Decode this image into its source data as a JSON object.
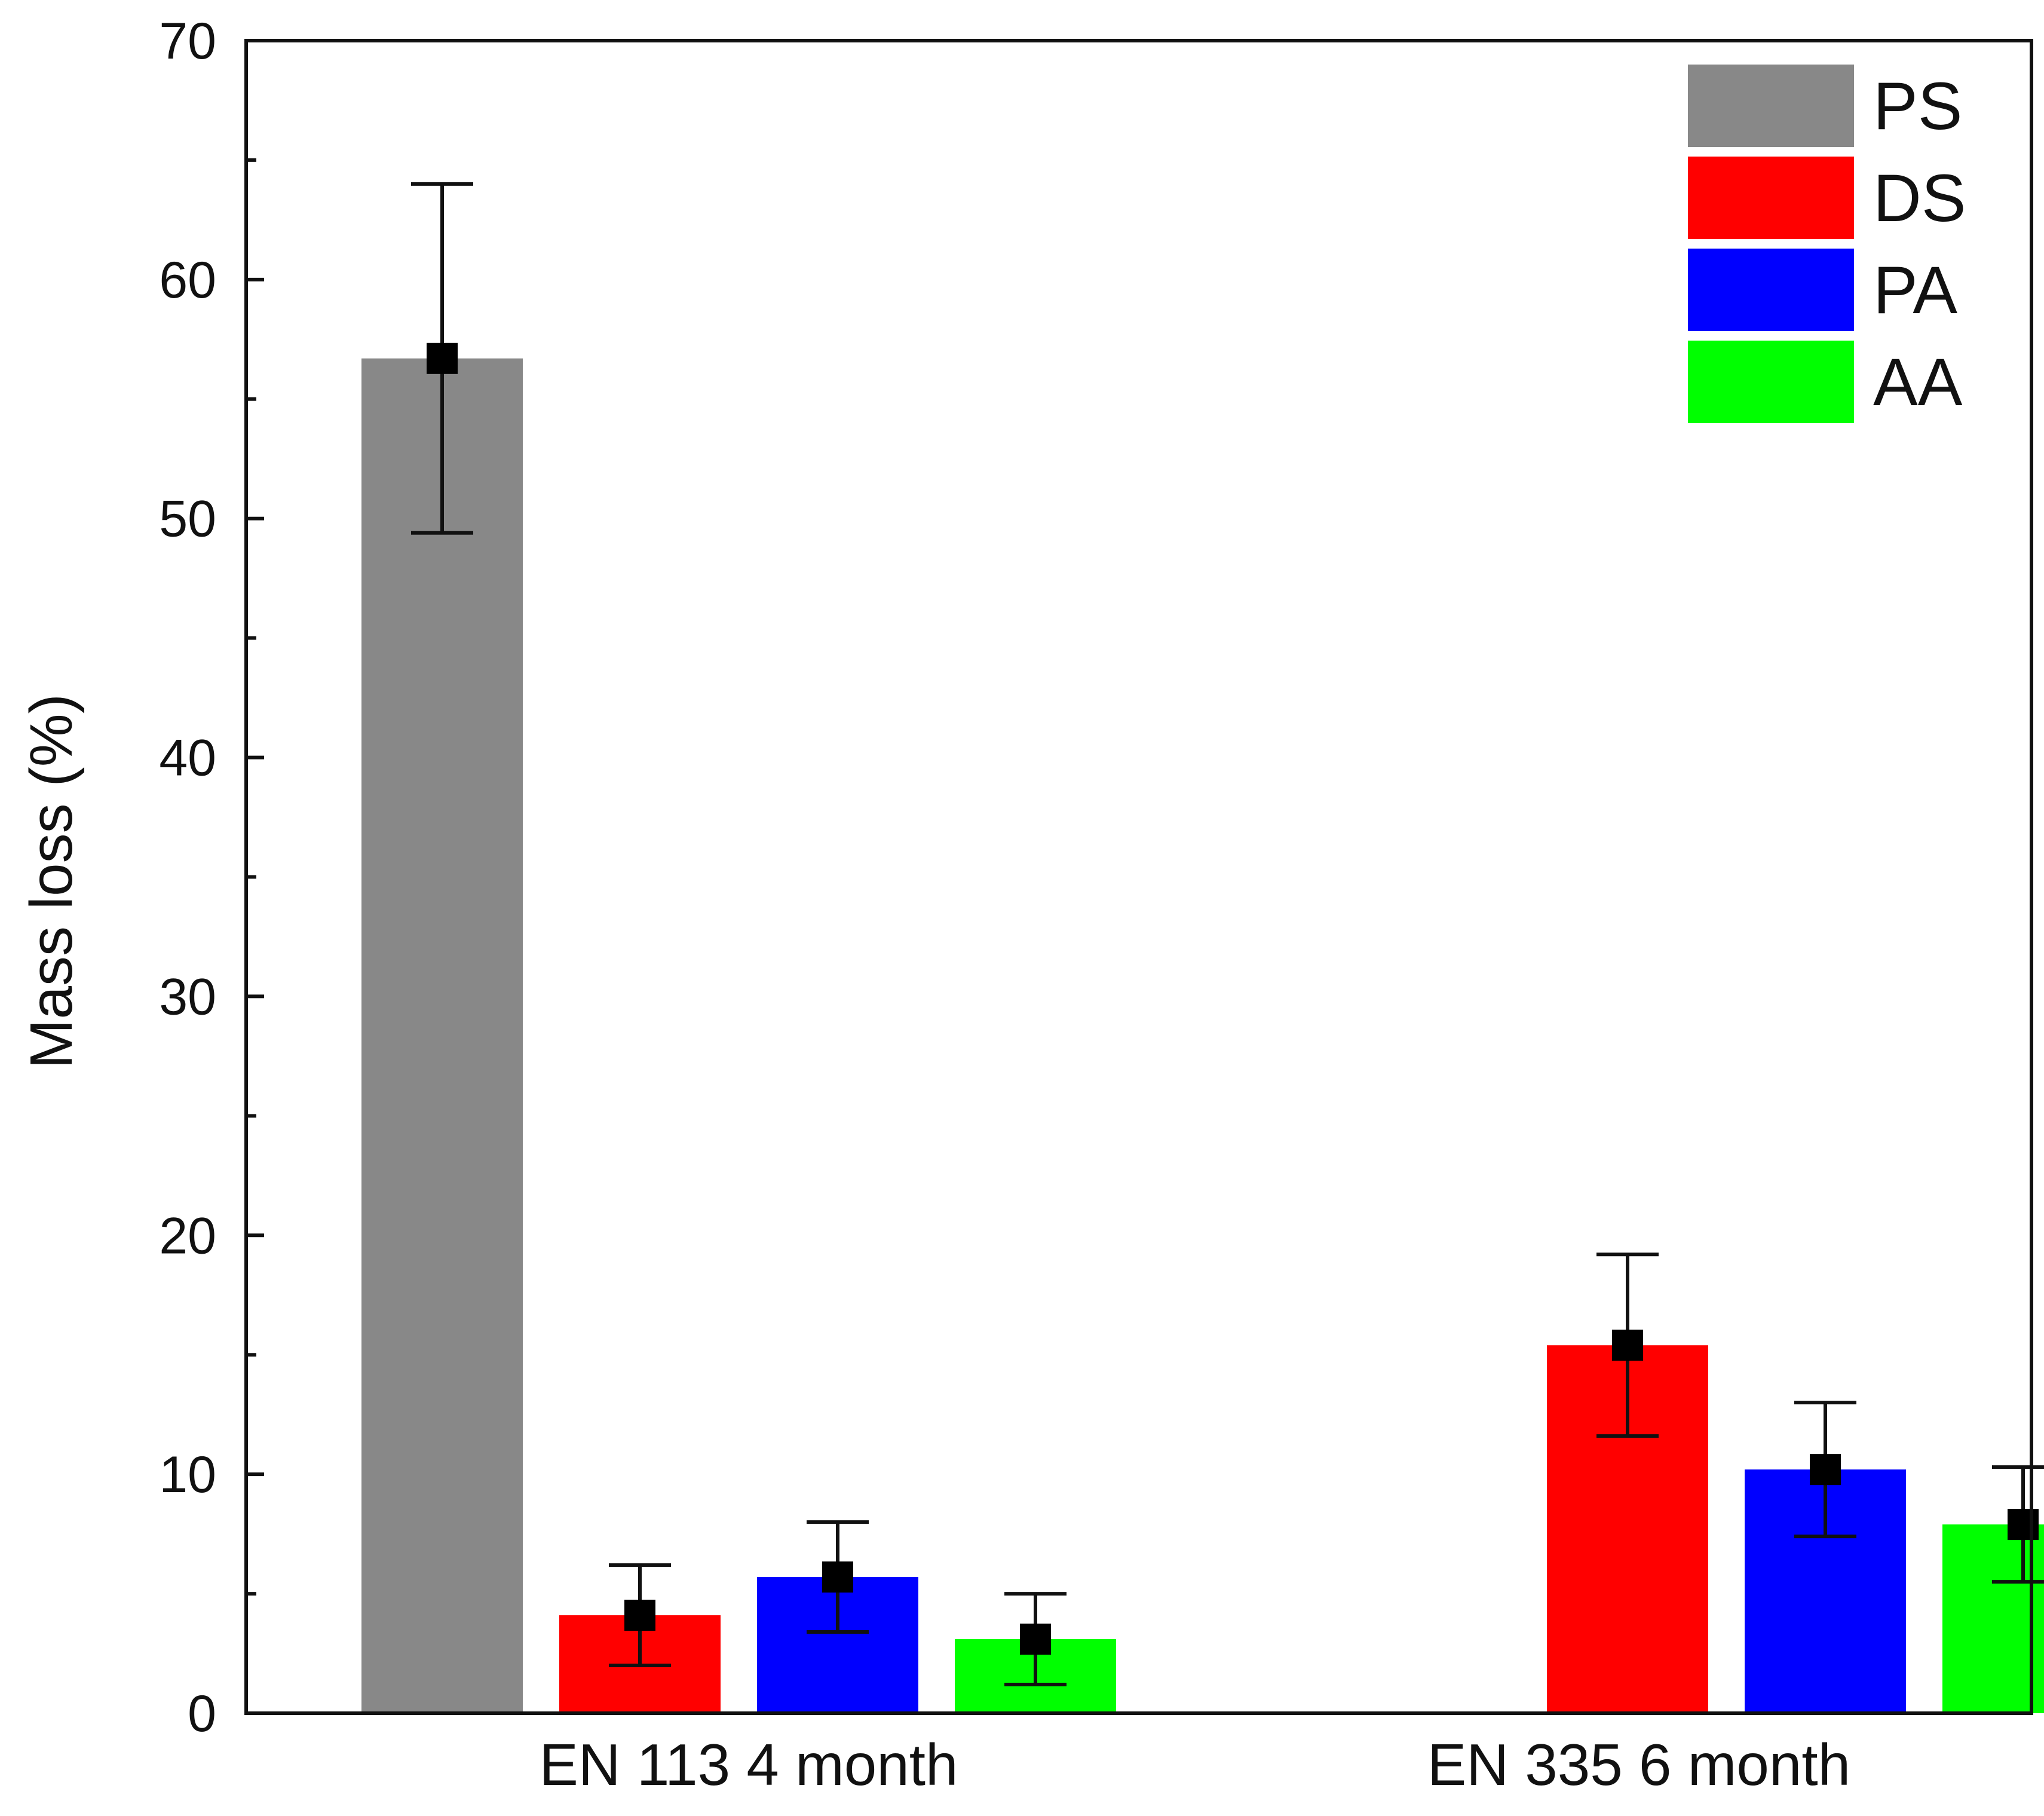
{
  "chart_data": {
    "type": "bar",
    "title": "",
    "xlabel": "",
    "ylabel": "Mass loss (%)",
    "ylim": [
      0,
      70
    ],
    "yticks": [
      0,
      10,
      20,
      30,
      40,
      50,
      60,
      70
    ],
    "grid": false,
    "legend_position": "top-right",
    "categories": [
      "EN 113  4 month",
      "EN 335  6 month"
    ],
    "series": [
      {
        "name": "PS",
        "color": "#888888",
        "values": [
          56.7,
          null
        ],
        "errors": [
          7.3,
          null
        ]
      },
      {
        "name": "DS",
        "color": "#ff0000",
        "values": [
          4.1,
          15.4
        ],
        "errors": [
          2.1,
          3.8
        ]
      },
      {
        "name": "PA",
        "color": "#0000ff",
        "values": [
          5.7,
          10.2
        ],
        "errors": [
          2.3,
          2.8
        ]
      },
      {
        "name": "AA",
        "color": "#00ff00",
        "values": [
          3.1,
          7.9
        ],
        "errors": [
          1.9,
          2.4
        ]
      }
    ]
  }
}
